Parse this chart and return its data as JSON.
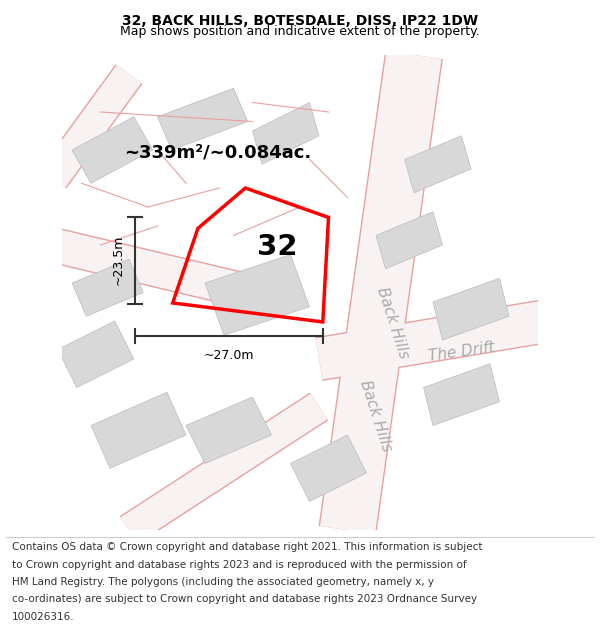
{
  "title_line1": "32, BACK HILLS, BOTESDALE, DISS, IP22 1DW",
  "title_line2": "Map shows position and indicative extent of the property.",
  "bg_color": "#ffffff",
  "map_bg_color": "#f0f0f0",
  "road_fill_color": "#fafafa",
  "building_fill_color": "#d8d8d8",
  "road_line_color": "#e8a0a0",
  "highlight_color": "#ff0000",
  "measure_color": "#333333",
  "street_label_color": "#aaaaaa",
  "property_label": "32",
  "area_label": "~339m²/~0.084ac.",
  "width_label": "~27.0m",
  "height_label": "~23.5m",
  "title_fontsize": 10,
  "subtitle_fontsize": 9,
  "footer_fontsize": 7.5,
  "footer_lines": [
    "Contains OS data © Crown copyright and database right 2021. This information is subject",
    "to Crown copyright and database rights 2023 and is reproduced with the permission of",
    "HM Land Registry. The polygons (including the associated geometry, namely x, y",
    "co-ordinates) are subject to Crown copyright and database rights 2023 Ordnance Survey",
    "100026316."
  ]
}
